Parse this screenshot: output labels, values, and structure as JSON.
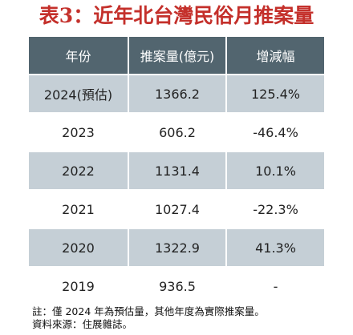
{
  "title": "表3：近年北台灣民俗月推案量",
  "table": {
    "headers": [
      "年份",
      "推案量(億元)",
      "增減幅"
    ],
    "rows": [
      [
        "2024(預估)",
        "1366.2",
        "125.4%"
      ],
      [
        "2023",
        "606.2",
        "-46.4%"
      ],
      [
        "2022",
        "1131.4",
        "10.1%"
      ],
      [
        "2021",
        "1027.4",
        "-22.3%"
      ],
      [
        "2020",
        "1322.9",
        "41.3%"
      ],
      [
        "2019",
        "936.5",
        "-"
      ]
    ]
  },
  "notes": {
    "note": "註：僅 2024 年為預估量，其他年度為實際推案量。",
    "source": "資料來源：住展雜誌。"
  },
  "colors": {
    "title": "#c4302b",
    "header_bg": "#52656f",
    "shaded_row": "#c5cfd6"
  }
}
